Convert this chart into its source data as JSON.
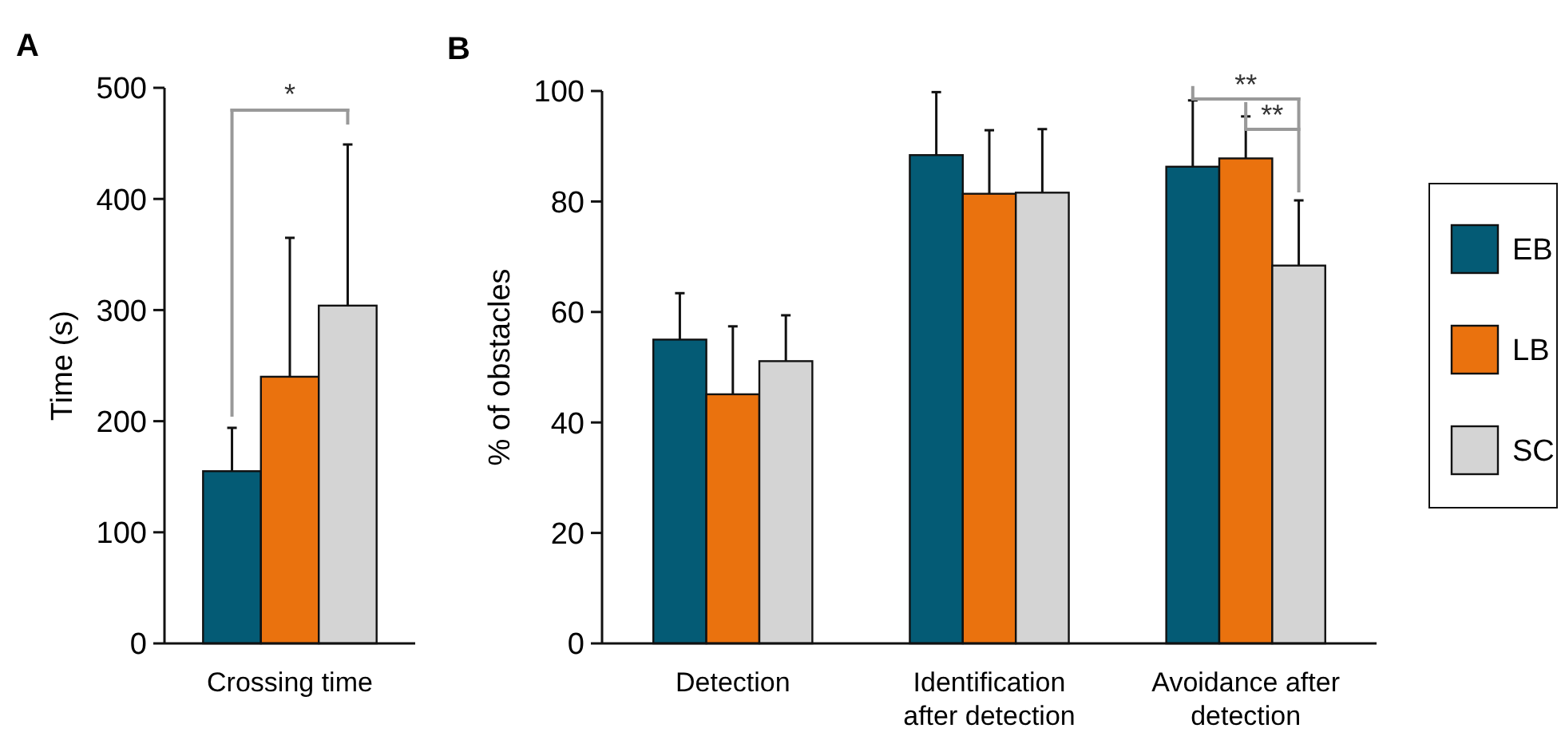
{
  "chart_data": [
    {
      "type": "bar",
      "title": "A",
      "ylabel": "Time (s)",
      "categories": [
        "Crossing time"
      ],
      "ylim": [
        0,
        500
      ],
      "yticks": [
        0,
        100,
        200,
        300,
        400,
        500
      ],
      "legend": false,
      "annotations": [
        "*"
      ],
      "series": [
        {
          "color": "#045b75",
          "values": [
            155
          ],
          "errors": [
            [
              155,
              194
            ]
          ]
        },
        {
          "color": "#ea720e",
          "values": [
            240
          ],
          "errors": [
            [
              240,
              365
            ]
          ]
        },
        {
          "color": "#d4d4d4",
          "values": [
            304
          ],
          "errors": [
            [
              304,
              449
            ]
          ]
        }
      ]
    },
    {
      "type": "bar",
      "title": "B",
      "ylabel": "% of obstacles",
      "categories": [
        "Detection",
        "Identification\nafter detection",
        "Avoidance after\ndetection"
      ],
      "ylim": [
        0,
        100
      ],
      "yticks": [
        0,
        20,
        40,
        60,
        80,
        100
      ],
      "legend": "right",
      "annotations": [
        "**",
        "**"
      ],
      "series": [
        {
          "name": "EB",
          "color": "#045b75",
          "values": [
            55.0,
            88.4,
            86.3
          ],
          "errors": [
            [
              55.0,
              63.4
            ],
            [
              88.4,
              99.8
            ],
            [
              86.3,
              98.3
            ]
          ]
        },
        {
          "name": "LB",
          "color": "#ea720e",
          "values": [
            45.1,
            81.4,
            87.8
          ],
          "errors": [
            [
              45.1,
              57.4
            ],
            [
              81.4,
              92.9
            ],
            [
              87.8,
              95.4
            ]
          ]
        },
        {
          "name": "SC",
          "color": "#d4d4d4",
          "values": [
            51.1,
            81.6,
            68.4
          ],
          "errors": [
            [
              51.1,
              59.4
            ],
            [
              81.6,
              93.1
            ],
            [
              68.4,
              80.2
            ]
          ]
        }
      ]
    }
  ]
}
